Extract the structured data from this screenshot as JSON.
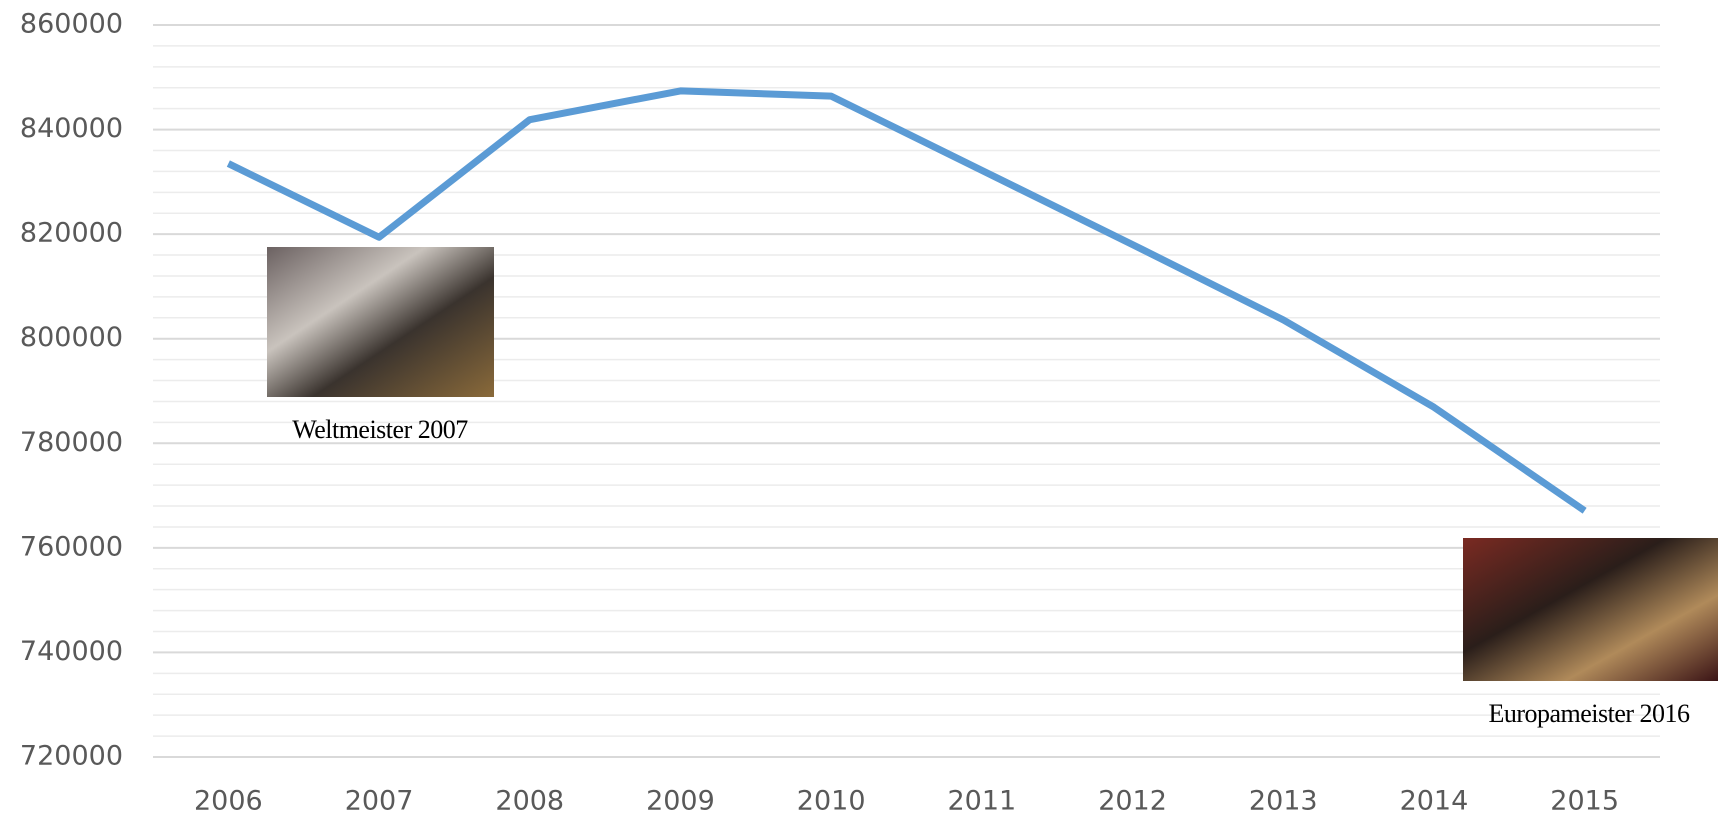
{
  "chart_data": {
    "type": "line",
    "categories": [
      "2006",
      "2007",
      "2008",
      "2009",
      "2010",
      "2011",
      "2012",
      "2013",
      "2014",
      "2015"
    ],
    "series": [
      {
        "color": "#5b9bd5",
        "values": [
          833500,
          819400,
          841900,
          847400,
          846400,
          832200,
          818000,
          803600,
          786900,
          767100
        ]
      }
    ],
    "ylim": [
      720000,
      860000
    ],
    "yticks": [
      720000,
      740000,
      760000,
      780000,
      800000,
      820000,
      840000,
      860000
    ],
    "grid": true,
    "annotations": [
      {
        "text": "Weltmeister 2007"
      },
      {
        "text": "Europameister 2016"
      }
    ]
  }
}
